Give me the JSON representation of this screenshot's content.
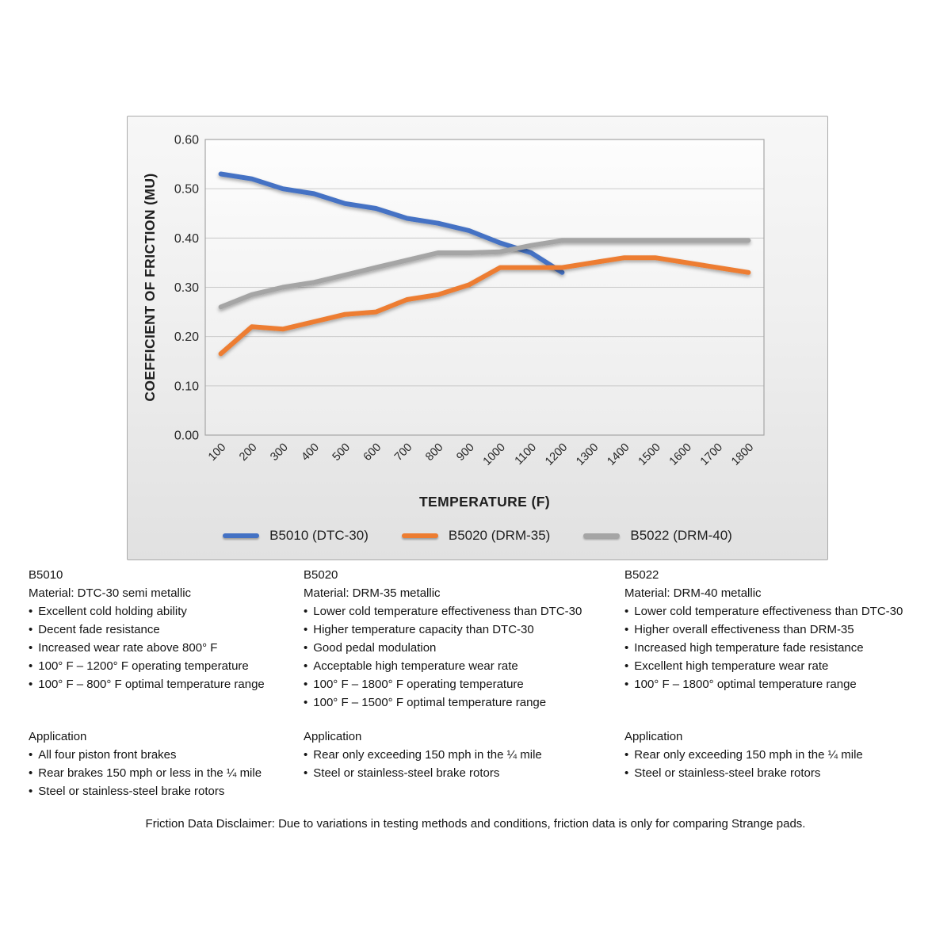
{
  "chart_data": {
    "type": "line",
    "title": "",
    "xlabel": "TEMPERATURE (F)",
    "ylabel": "COEFFICIENT OF FRICTION (MU)",
    "x_categories": [
      "100",
      "200",
      "300",
      "400",
      "500",
      "600",
      "700",
      "800",
      "900",
      "1000",
      "1100",
      "1200",
      "1300",
      "1400",
      "1500",
      "1600",
      "1700",
      "1800"
    ],
    "ylim": [
      0,
      0.6
    ],
    "grid": true,
    "legend_position": "bottom",
    "gridline_color": "#C9C9C9",
    "plot_border_color": "#A6A6A6",
    "yticks": [
      {
        "value": 0.0,
        "label": "0.00"
      },
      {
        "value": 0.1,
        "label": "0.10"
      },
      {
        "value": 0.2,
        "label": "0.20"
      },
      {
        "value": 0.3,
        "label": "0.30"
      },
      {
        "value": 0.4,
        "label": "0.40"
      },
      {
        "value": 0.5,
        "label": "0.50"
      },
      {
        "value": 0.6,
        "label": "0.60"
      }
    ],
    "series": [
      {
        "name": "B5010 (DTC-30)",
        "color": "#4472C4",
        "values": [
          0.53,
          0.52,
          0.5,
          0.49,
          0.47,
          0.46,
          0.44,
          0.43,
          0.415,
          0.39,
          0.37,
          0.33
        ]
      },
      {
        "name": "B5020 (DRM-35)",
        "color": "#ED7D31",
        "values": [
          0.165,
          0.22,
          0.215,
          0.23,
          0.245,
          0.25,
          0.275,
          0.285,
          0.305,
          0.34,
          0.34,
          0.34,
          0.35,
          0.36,
          0.36,
          0.35,
          0.34,
          0.33
        ]
      },
      {
        "name": "B5022 (DRM-40)",
        "color": "#A5A5A5",
        "values": [
          0.26,
          0.285,
          0.3,
          0.31,
          0.325,
          0.34,
          0.355,
          0.37,
          0.37,
          0.372,
          0.385,
          0.395,
          0.395,
          0.395,
          0.395,
          0.395,
          0.395,
          0.395
        ]
      }
    ]
  },
  "pads": [
    {
      "code": "B5010",
      "material": "Material: DTC-30 semi metallic",
      "features": [
        "Excellent cold holding ability",
        "Decent fade resistance",
        "Increased wear rate above 800° F",
        "100° F – 1200° F operating temperature",
        "100° F – 800° F optimal temperature range"
      ],
      "application_label": "Application",
      "application_items": [
        "All four piston front brakes",
        "Rear brakes 150 mph or less in the ¼ mile",
        "Steel or stainless-steel brake rotors"
      ]
    },
    {
      "code": "B5020",
      "material": "Material: DRM-35 metallic",
      "features": [
        "Lower cold temperature effectiveness than DTC-30",
        "Higher temperature capacity than DTC-30",
        "Good pedal modulation",
        "Acceptable high temperature wear rate",
        "100° F – 1800° F operating temperature",
        "100° F – 1500° F optimal temperature range"
      ],
      "application_label": "Application",
      "application_items": [
        "Rear only exceeding 150 mph in the ¼ mile",
        "Steel or stainless-steel brake rotors"
      ]
    },
    {
      "code": "B5022",
      "material": "Material: DRM-40 metallic",
      "features": [
        "Lower cold temperature effectiveness than DTC-30",
        "Higher overall effectiveness than DRM-35",
        "Increased high temperature fade resistance",
        "Excellent high temperature wear rate",
        "100° F – 1800° optimal temperature range"
      ],
      "application_label": "Application",
      "application_items": [
        "Rear only exceeding 150 mph in the ¼ mile",
        "Steel or stainless-steel brake rotors"
      ]
    }
  ],
  "footer": {
    "disclaimer": "Friction Data Disclaimer:  Due to variations in testing methods and conditions, friction data is only for comparing Strange pads."
  }
}
